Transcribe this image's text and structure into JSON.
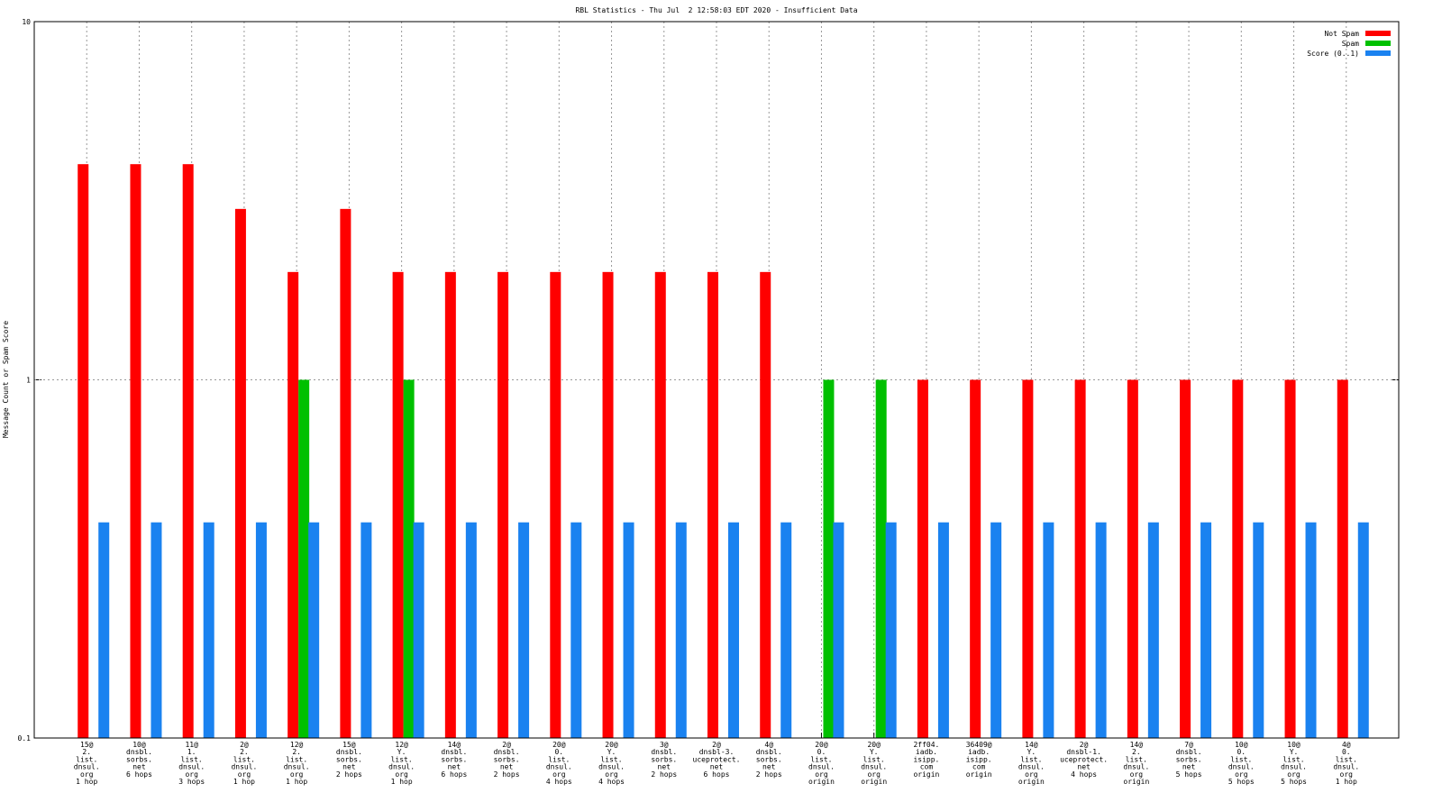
{
  "chart_data": {
    "type": "bar",
    "title": "RBL Statistics - Thu Jul  2 12:58:03 EDT 2020 - Insufficient Data",
    "y_label": "Message Count or Spam Score",
    "log_scale": true,
    "grid": true,
    "legend": "top-right",
    "ylim": [
      0.1,
      10
    ],
    "yticks": [
      0.1,
      1,
      10
    ],
    "categories": [
      [
        "15@",
        "2.",
        "list.",
        "dnsul.",
        "org",
        "1 hop"
      ],
      [
        "10@",
        "dnsbl.",
        "sorbs.",
        "net",
        "6 hops"
      ],
      [
        "11@",
        "1.",
        "list.",
        "dnsul.",
        "org",
        "3 hops"
      ],
      [
        "2@",
        "2.",
        "list.",
        "dnsul.",
        "org",
        "1 hop"
      ],
      [
        "12@",
        "2.",
        "list.",
        "dnsul.",
        "org",
        "1 hop"
      ],
      [
        "15@",
        "dnsbl.",
        "sorbs.",
        "net",
        "2 hops"
      ],
      [
        "12@",
        "Y.",
        "list.",
        "dnsul.",
        "org",
        "1 hop"
      ],
      [
        "14@",
        "dnsbl.",
        "sorbs.",
        "net",
        "6 hops"
      ],
      [
        "2@",
        "dnsbl.",
        "sorbs.",
        "net",
        "2 hops"
      ],
      [
        "20@",
        "0.",
        "list.",
        "dnsul.",
        "org",
        "4 hops"
      ],
      [
        "20@",
        "Y.",
        "list.",
        "dnsul.",
        "org",
        "4 hops"
      ],
      [
        "3@",
        "dnsbl.",
        "sorbs.",
        "net",
        "2 hops"
      ],
      [
        "2@",
        "dnsbl-3.",
        "uceprotect.",
        "net",
        "6 hops"
      ],
      [
        "4@",
        "dnsbl.",
        "sorbs.",
        "net",
        "2 hops"
      ],
      [
        "20@",
        "0.",
        "list.",
        "dnsul.",
        "org",
        "origin"
      ],
      [
        "20@",
        "Y.",
        "list.",
        "dnsul.",
        "org",
        "origin"
      ],
      [
        "2ff04.",
        "iadb.",
        "isipp.",
        "com",
        "origin"
      ],
      [
        "36409@",
        "iadb.",
        "isipp.",
        "com",
        "origin"
      ],
      [
        "14@",
        "Y.",
        "list.",
        "dnsul.",
        "org",
        "origin"
      ],
      [
        "2@",
        "dnsbl-1.",
        "uceprotect.",
        "net",
        "4 hops"
      ],
      [
        "14@",
        "2.",
        "list.",
        "dnsul.",
        "org",
        "origin"
      ],
      [
        "7@",
        "dnsbl.",
        "sorbs.",
        "net",
        "5 hops"
      ],
      [
        "10@",
        "0.",
        "list.",
        "dnsul.",
        "org",
        "5 hops"
      ],
      [
        "10@",
        "Y.",
        "list.",
        "dnsul.",
        "org",
        "5 hops"
      ],
      [
        "4@",
        "0.",
        "list.",
        "dnsul.",
        "org",
        "1 hop"
      ]
    ],
    "series": [
      {
        "name": "Not Spam",
        "color": "#ff0000",
        "values": [
          4,
          4,
          4,
          3,
          2,
          3,
          2,
          2,
          2,
          2,
          2,
          2,
          2,
          2,
          null,
          null,
          1,
          1,
          1,
          1,
          1,
          1,
          1,
          1,
          1
        ]
      },
      {
        "name": "Spam",
        "color": "#00c000",
        "values": [
          null,
          null,
          null,
          null,
          1,
          null,
          1,
          null,
          null,
          null,
          null,
          null,
          null,
          null,
          1,
          1,
          null,
          null,
          null,
          null,
          null,
          null,
          null,
          null,
          null
        ]
      },
      {
        "name": "Score (0..1)",
        "color": "#1a82f0",
        "values": [
          0.4,
          0.4,
          0.4,
          0.4,
          0.4,
          0.4,
          0.4,
          0.4,
          0.4,
          0.4,
          0.4,
          0.4,
          0.4,
          0.4,
          0.4,
          0.4,
          0.4,
          0.4,
          0.4,
          0.4,
          0.4,
          0.4,
          0.4,
          0.4,
          0.4
        ]
      }
    ]
  }
}
